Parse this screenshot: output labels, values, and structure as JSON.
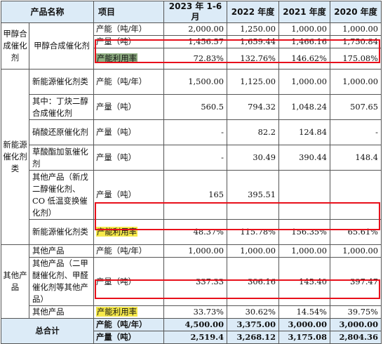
{
  "header": {
    "product": "产品名称",
    "item": "项目",
    "years": [
      "2023 年 1-6 月",
      "2022 年度",
      "2021 年度",
      "2020 年度"
    ]
  },
  "sections": {
    "methanol": {
      "category": "甲醇合成催化剂",
      "product": "甲醇合成催化剂",
      "rows": [
        {
          "item": "产能（吨/年）",
          "values": [
            "2,000.00",
            "1,250.00",
            "1,000.00",
            "1,000.00"
          ]
        },
        {
          "item": "产量（吨）",
          "values": [
            "1,456.57",
            "1,659.44",
            "1,466.16",
            "1,750.84"
          ]
        },
        {
          "item": "产能利用率",
          "values": [
            "72.83%",
            "132.76%",
            "146.62%",
            "175.08%"
          ]
        }
      ]
    },
    "new_energy": {
      "category": "新能源催化剂类",
      "rows": [
        {
          "product": "新能源催化剂类",
          "item": "产能（吨/年）",
          "values": [
            "1,500.00",
            "1,125.00",
            "1,000.00",
            "1,000.00"
          ]
        },
        {
          "product": "其中：丁炔二醇合成催化剂",
          "item": "产量（吨）",
          "values": [
            "560.5",
            "794.32",
            "1,048.24",
            "507.65"
          ]
        },
        {
          "product": "硝酸还原催化剂",
          "item": "产量（吨）",
          "values": [
            "-",
            "82.2",
            "124.84",
            "-"
          ]
        },
        {
          "product": "草酸酯加氢催化剂",
          "item": "产量（吨）",
          "values": [
            "-",
            "30.49",
            "390.44",
            "148.4"
          ]
        },
        {
          "product": "其他产品（新戊二醇催化剂、CO 低温变换催化剂）",
          "item": "产量（吨）",
          "values": [
            "165",
            "395.51",
            "",
            ""
          ]
        },
        {
          "product": "新能源催化剂类",
          "item": "产能利用率",
          "values": [
            "48.37%",
            "115.78%",
            "156.35%",
            "65.61%"
          ]
        }
      ]
    },
    "other": {
      "category": "其他产品",
      "rows": [
        {
          "product": "其他产品",
          "item": "产能（吨/年）",
          "values": [
            "1,000.00",
            "1,000.00",
            "1,000.00",
            "1,000.00"
          ]
        },
        {
          "product": "其他产品（二甲醚催化剂、甲醛催化剂等其他产品）",
          "item": "产量（吨）",
          "values": [
            "337.33",
            "306.16",
            "145.40",
            "397.47"
          ]
        },
        {
          "product": "其他产品",
          "item": "产能利用率",
          "values": [
            "33.73%",
            "30.62%",
            "14.54%",
            "39.75%"
          ]
        }
      ]
    },
    "total": {
      "category": "总合计",
      "rows": [
        {
          "item": "产能（吨/年）",
          "values": [
            "4,500.00",
            "3,375.00",
            "3,000.00",
            "3,000.00"
          ]
        },
        {
          "item": "产量（吨）",
          "values": [
            "2,519.4",
            "3,268.12",
            "3,175.08",
            "2,804.36"
          ]
        }
      ]
    }
  },
  "colors": {
    "header_bg": "#dcebf7",
    "highlight_yellow": "#f6e94a",
    "highlight_green": "#8fae82",
    "annotation_red": "#e8101b"
  }
}
